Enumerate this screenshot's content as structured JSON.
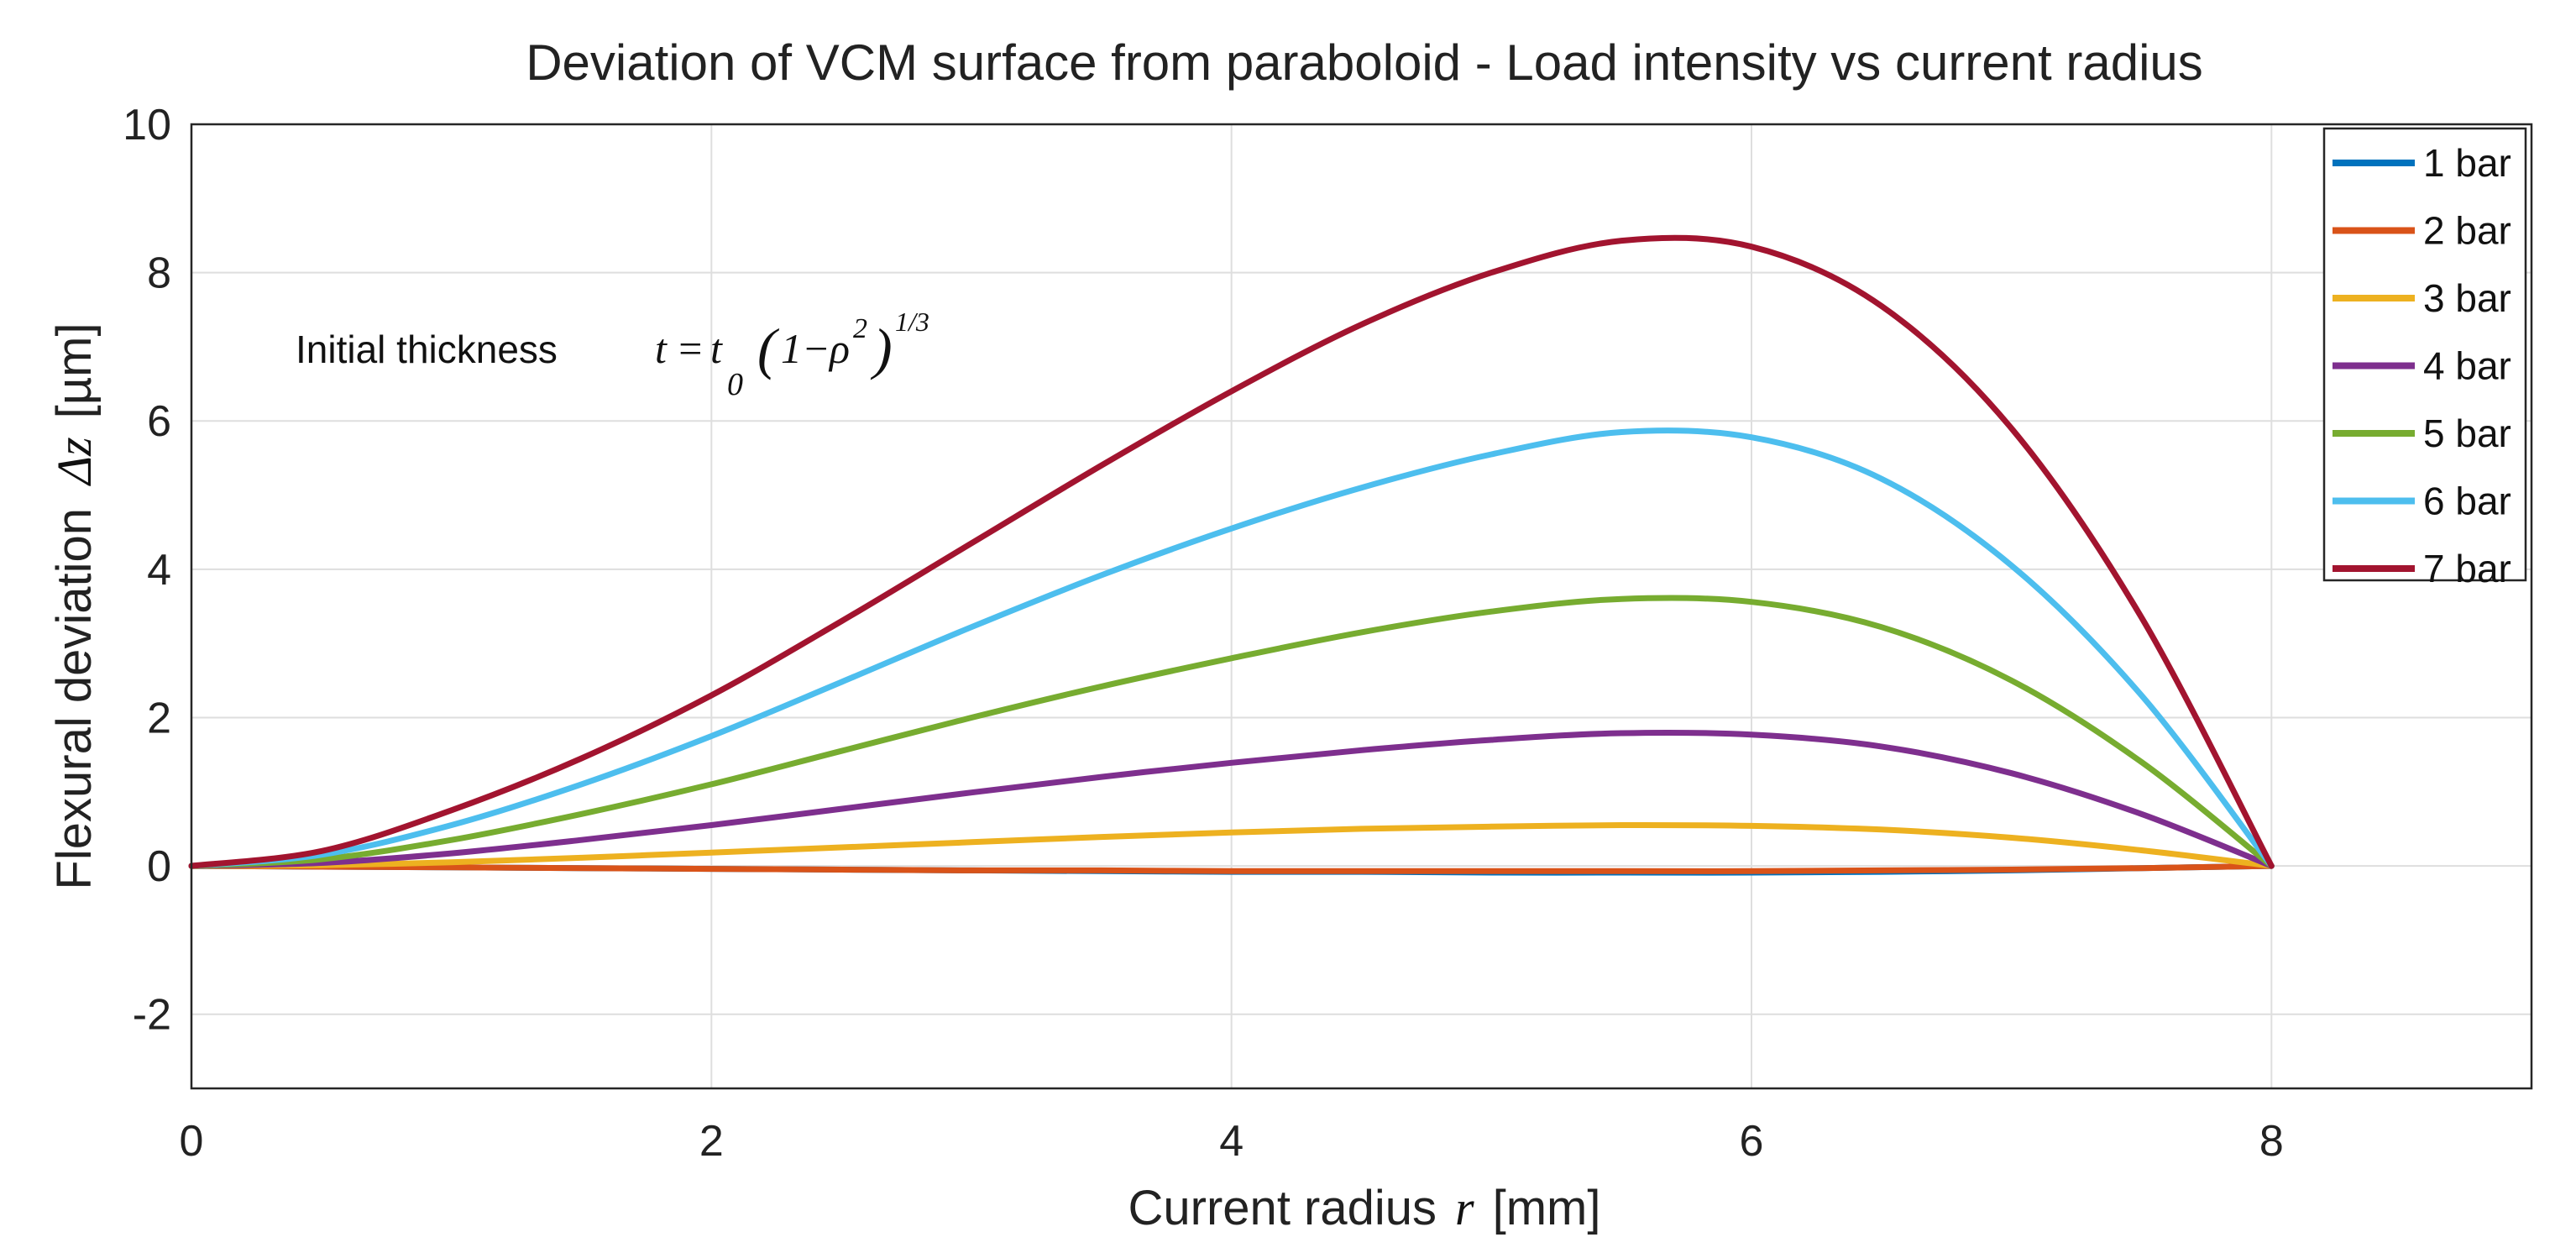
{
  "chart_data": {
    "type": "line",
    "title": "Deviation of VCM surface from paraboloid  -  Load intensity vs current radius",
    "xlabel": {
      "main": "Current radius",
      "var": "r",
      "unit": "[mm]"
    },
    "ylabel": {
      "main": "Flexural deviation",
      "var": "Δz",
      "unit": "[µm]"
    },
    "xlim": [
      0,
      9
    ],
    "ylim": [
      -3,
      10
    ],
    "xticks": [
      0,
      2,
      4,
      6,
      8
    ],
    "yticks": [
      -2,
      0,
      2,
      4,
      6,
      8,
      10
    ],
    "grid": true,
    "legend_position": "top-right",
    "annotation": {
      "lead": "Initial thickness",
      "t": "t",
      "eq": "=",
      "t0": "t",
      "sub0": "0",
      "open": "(",
      "one": "1",
      "minus": "−",
      "rho": "ρ",
      "sq": "2",
      "close": ")",
      "exp": "1/3"
    },
    "x": [
      0,
      0.5,
      1,
      1.5,
      2,
      2.5,
      3,
      3.5,
      4,
      4.5,
      5,
      5.5,
      6,
      6.5,
      7,
      7.5,
      8
    ],
    "series": [
      {
        "name": "1 bar",
        "color": "#0072BD",
        "values": [
          0,
          -0.01,
          -0.02,
          -0.03,
          -0.04,
          -0.05,
          -0.06,
          -0.07,
          -0.08,
          -0.08,
          -0.09,
          -0.09,
          -0.09,
          -0.08,
          -0.06,
          -0.03,
          0
        ]
      },
      {
        "name": "2 bar",
        "color": "#D95319",
        "values": [
          0,
          -0.01,
          -0.02,
          -0.03,
          -0.04,
          -0.05,
          -0.06,
          -0.06,
          -0.07,
          -0.07,
          -0.07,
          -0.07,
          -0.07,
          -0.06,
          -0.05,
          -0.03,
          0
        ]
      },
      {
        "name": "3 bar",
        "color": "#EDB120",
        "values": [
          0,
          0.01,
          0.05,
          0.11,
          0.18,
          0.25,
          0.32,
          0.39,
          0.45,
          0.5,
          0.53,
          0.55,
          0.54,
          0.49,
          0.38,
          0.21,
          0
        ]
      },
      {
        "name": "4 bar",
        "color": "#7E2F8E",
        "values": [
          0,
          0.04,
          0.17,
          0.35,
          0.55,
          0.77,
          0.99,
          1.2,
          1.39,
          1.56,
          1.7,
          1.79,
          1.77,
          1.61,
          1.25,
          0.7,
          0
        ]
      },
      {
        "name": "5 bar",
        "color": "#77AC30",
        "values": [
          0,
          0.09,
          0.35,
          0.7,
          1.1,
          1.55,
          2.0,
          2.42,
          2.8,
          3.15,
          3.43,
          3.6,
          3.56,
          3.22,
          2.5,
          1.4,
          0
        ]
      },
      {
        "name": "6 bar",
        "color": "#4DBEEE",
        "values": [
          0,
          0.15,
          0.55,
          1.1,
          1.75,
          2.48,
          3.22,
          3.92,
          4.55,
          5.1,
          5.55,
          5.85,
          5.78,
          5.22,
          4.05,
          2.3,
          0
        ]
      },
      {
        "name": "7 bar",
        "color": "#A2142F",
        "values": [
          0,
          0.2,
          0.75,
          1.45,
          2.3,
          3.3,
          4.35,
          5.4,
          6.4,
          7.3,
          8.0,
          8.43,
          8.35,
          7.55,
          5.9,
          3.35,
          0
        ]
      }
    ]
  }
}
